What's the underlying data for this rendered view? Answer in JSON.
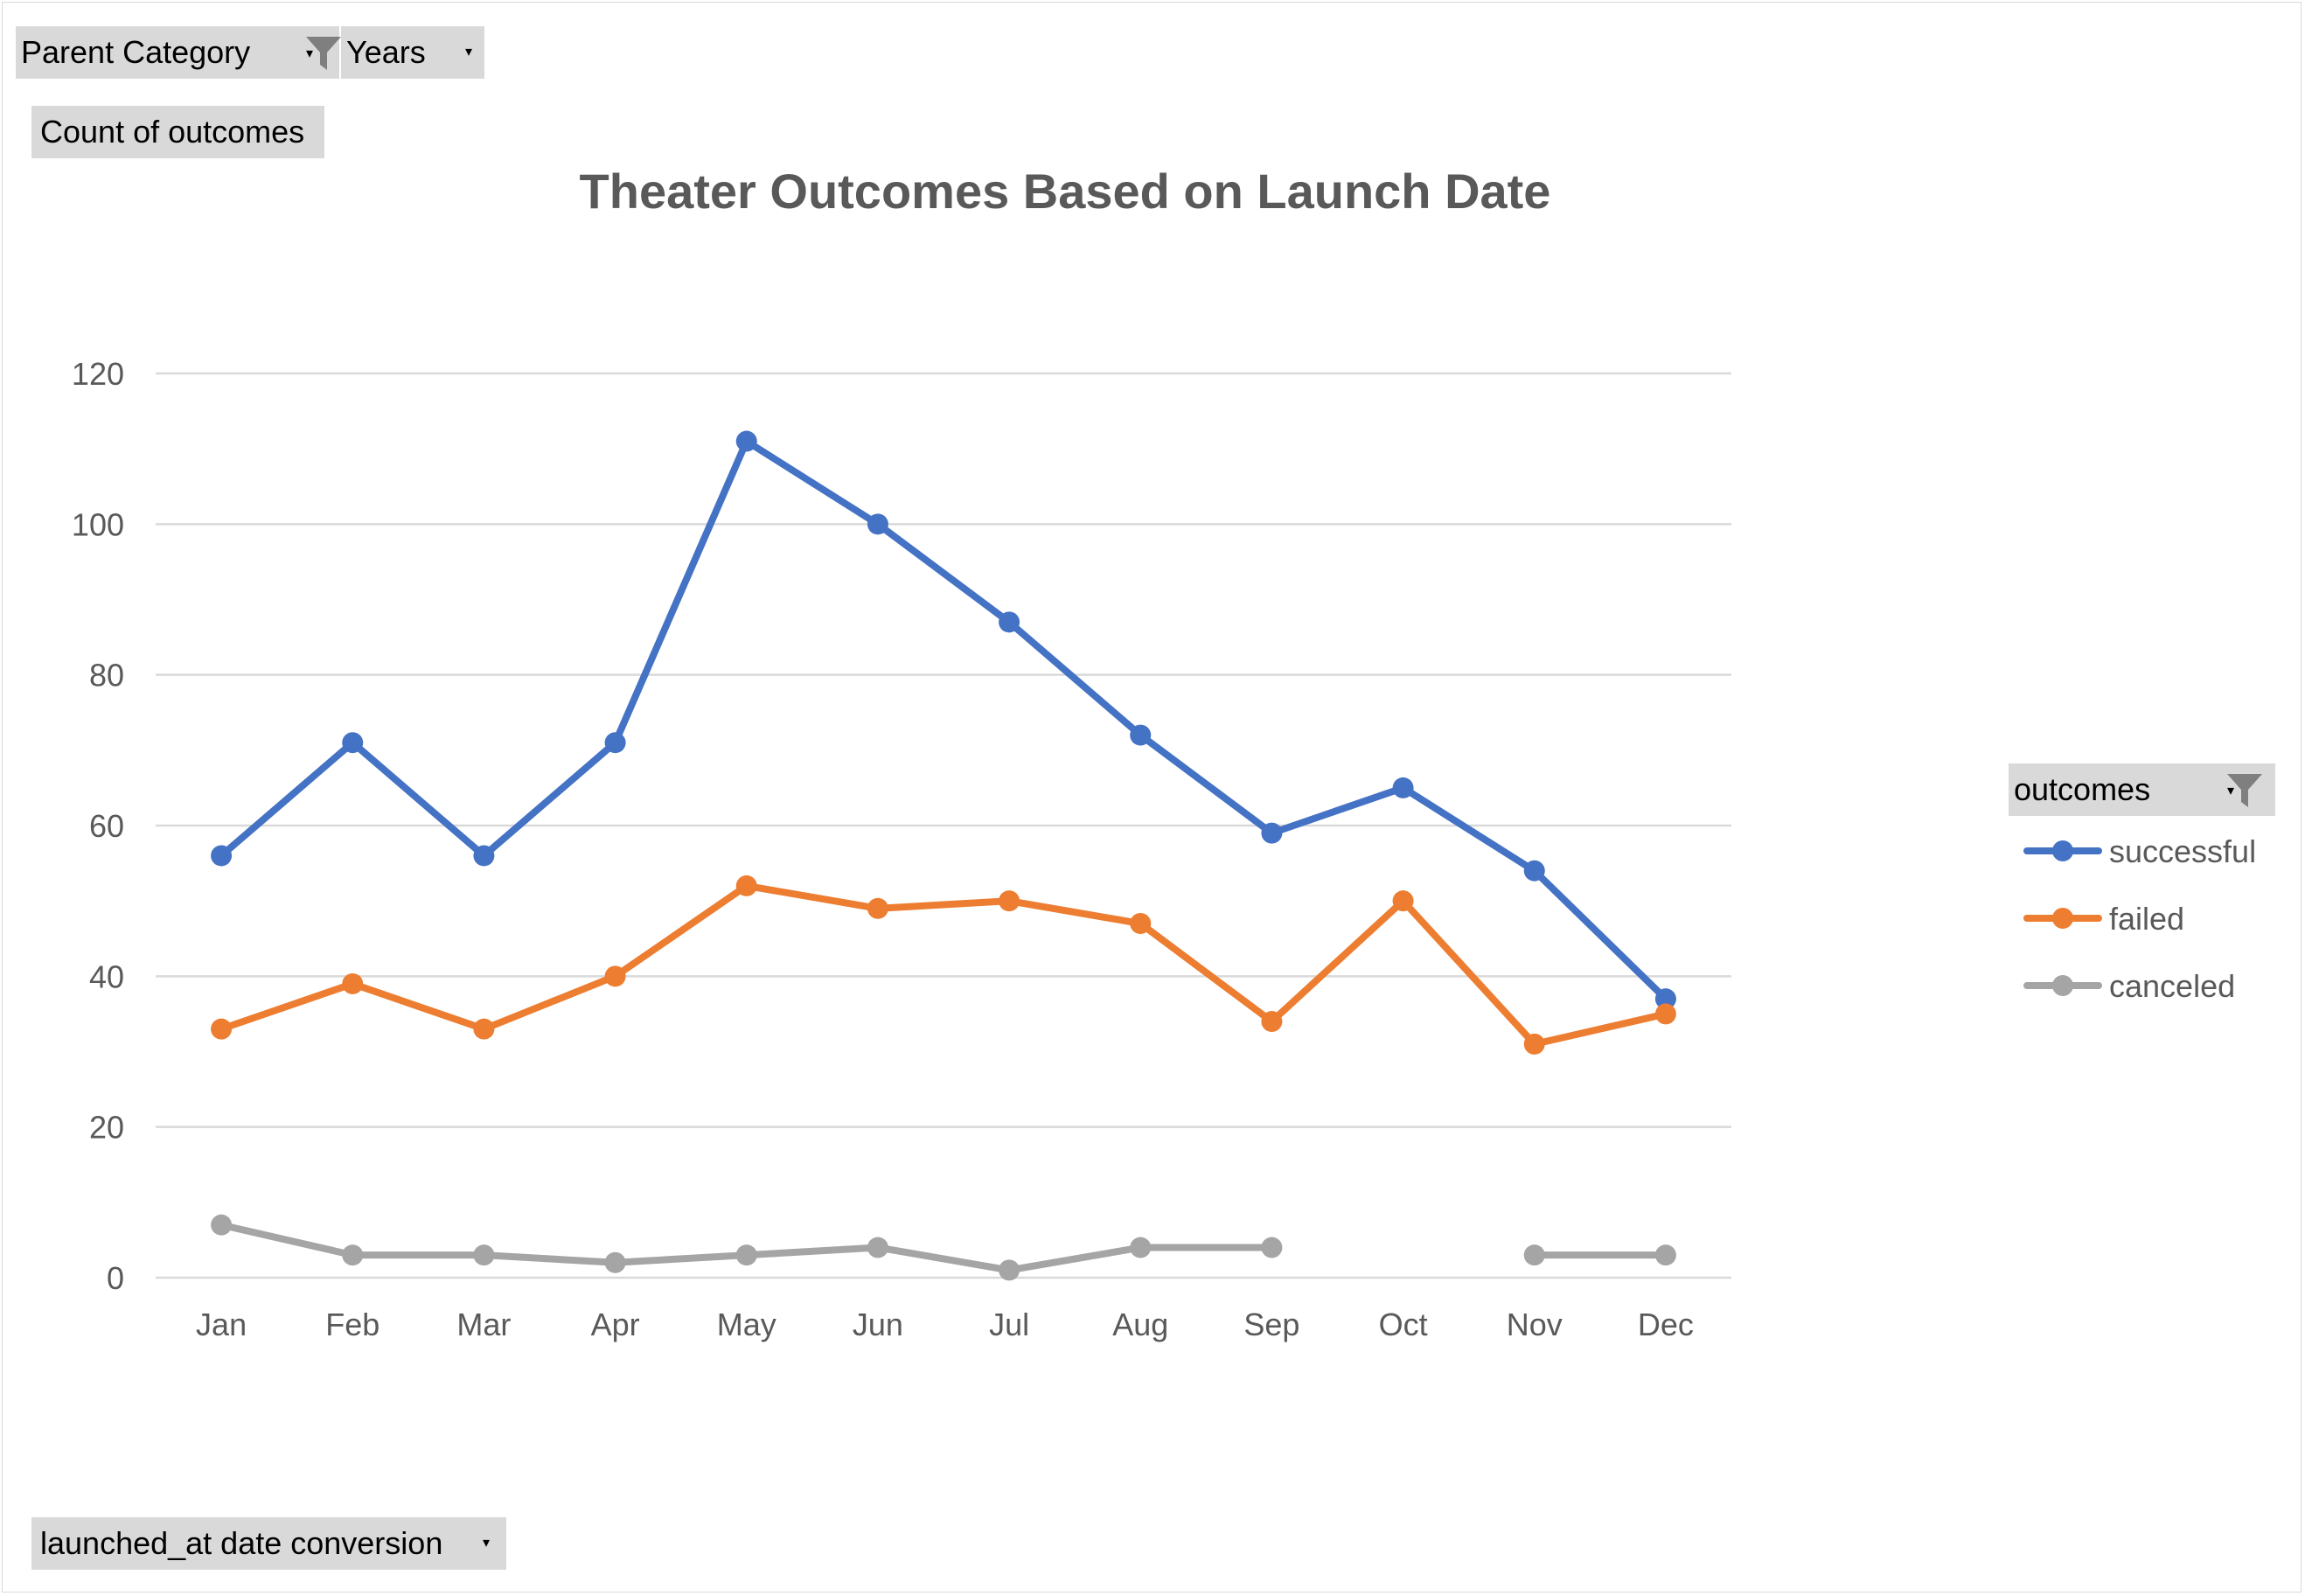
{
  "pivot_fields": {
    "filter_1": "Parent Category",
    "filter_2": "Years",
    "values_field": "Count of outcomes",
    "axis_field": "launched_at date conversion",
    "legend_field": "outcomes"
  },
  "colors": {
    "successful": "#4472C4",
    "failed": "#ED7D31",
    "canceled": "#A5A5A5",
    "gridline": "#d9d9d9",
    "text": "#595959",
    "button_bg": "#d9d9d9"
  },
  "chart_data": {
    "type": "line",
    "title": "Theater Outcomes Based on Launch Date",
    "xlabel": "",
    "ylabel": "",
    "ylim": [
      0,
      120
    ],
    "yticks": [
      0,
      20,
      40,
      60,
      80,
      100,
      120
    ],
    "grid": true,
    "legend_position": "right",
    "categories": [
      "Jan",
      "Feb",
      "Mar",
      "Apr",
      "May",
      "Jun",
      "Jul",
      "Aug",
      "Sep",
      "Oct",
      "Nov",
      "Dec"
    ],
    "series": [
      {
        "name": "successful",
        "color": "#4472C4",
        "values": [
          56,
          71,
          56,
          71,
          111,
          100,
          87,
          72,
          59,
          65,
          54,
          37
        ]
      },
      {
        "name": "failed",
        "color": "#ED7D31",
        "values": [
          33,
          39,
          33,
          40,
          52,
          49,
          50,
          47,
          34,
          50,
          31,
          35
        ]
      },
      {
        "name": "canceled",
        "color": "#A5A5A5",
        "values": [
          7,
          3,
          3,
          2,
          3,
          4,
          1,
          4,
          4,
          null,
          3,
          3
        ]
      }
    ]
  }
}
